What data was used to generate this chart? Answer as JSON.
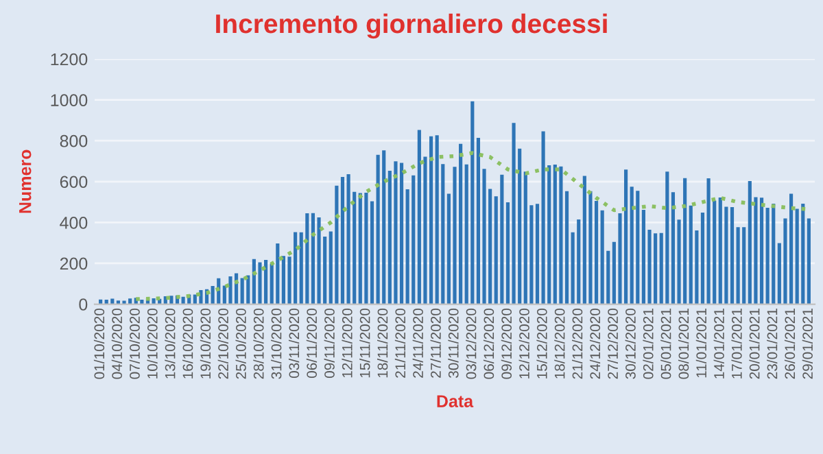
{
  "chart_data": {
    "type": "bar",
    "title": "Incremento giornaliero decessi",
    "xlabel": "Data",
    "ylabel": "Numero",
    "categories": [
      "01/10/2020",
      null,
      null,
      "04/10/2020",
      null,
      null,
      "07/10/2020",
      null,
      null,
      "10/10/2020",
      null,
      null,
      "13/10/2020",
      null,
      null,
      "16/10/2020",
      null,
      null,
      "19/10/2020",
      null,
      null,
      "22/10/2020",
      null,
      null,
      "25/10/2020",
      null,
      null,
      "28/10/2020",
      null,
      null,
      "31/10/2020",
      null,
      null,
      "03/11/2020",
      null,
      null,
      "06/11/2020",
      null,
      null,
      "09/11/2020",
      null,
      null,
      "12/11/2020",
      null,
      null,
      "15/11/2020",
      null,
      null,
      "18/11/2020",
      null,
      null,
      "21/11/2020",
      null,
      null,
      "24/11/2020",
      null,
      null,
      "27/11/2020",
      null,
      null,
      "30/11/2020",
      null,
      null,
      "03/12/2020",
      null,
      null,
      "06/12/2020",
      null,
      null,
      "09/12/2020",
      null,
      null,
      "12/12/2020",
      null,
      null,
      "15/12/2020",
      null,
      null,
      "18/12/2020",
      null,
      null,
      "21/12/2020",
      null,
      null,
      "24/12/2020",
      null,
      null,
      "27/12/2020",
      null,
      null,
      "30/12/2020",
      null,
      null,
      "02/01/2021",
      null,
      null,
      "05/01/2021",
      null,
      null,
      "08/01/2021",
      null,
      null,
      "11/01/2021",
      null,
      null,
      "14/01/2021",
      null,
      null,
      "17/01/2021",
      null,
      null,
      "20/01/2021",
      null,
      null,
      "23/01/2021",
      null,
      null,
      "26/01/2021",
      null,
      null,
      "29/01/2021"
    ],
    "series": [
      {
        "color": "#2e75b6",
        "values": [
          23,
          22,
          27,
          18,
          17,
          28,
          31,
          22,
          28,
          29,
          26,
          39,
          41,
          43,
          36,
          47,
          47,
          69,
          73,
          89,
          127,
          91,
          136,
          151,
          128,
          141,
          221,
          205,
          217,
          199,
          297,
          236,
          233,
          353,
          352,
          445,
          446,
          425,
          331,
          356,
          580,
          623,
          636,
          550,
          544,
          546,
          504,
          731,
          753,
          653,
          699,
          692,
          562,
          630,
          853,
          722,
          822,
          827,
          686,
          541,
          672,
          785,
          684,
          993,
          814,
          662,
          564,
          528,
          634,
          499,
          887,
          761,
          649,
          484,
          491,
          846,
          680,
          683,
          674,
          553,
          352,
          415,
          628,
          553,
          505,
          459,
          261,
          305,
          445,
          659,
          575,
          555,
          462,
          364,
          347,
          348,
          649,
          548,
          414,
          617,
          483,
          361,
          448,
          616,
          507,
          522,
          477,
          475,
          377,
          377,
          603,
          524,
          521,
          472,
          492,
          299,
          420,
          541,
          467,
          492,
          420
        ]
      },
      {
        "type": "line",
        "color": "#8cc063",
        "line_style": "dotted",
        "x": [
          "07/10/2020",
          "10/10/2020",
          "13/10/2020",
          "16/10/2020",
          "19/10/2020",
          "22/10/2020",
          "25/10/2020",
          "28/10/2020",
          "31/10/2020",
          "03/11/2020",
          "06/11/2020",
          "09/11/2020",
          "12/11/2020",
          "15/11/2020",
          "18/11/2020",
          "21/11/2020",
          "24/11/2020",
          "27/11/2020",
          "30/11/2020",
          "03/12/2020",
          "06/12/2020",
          "09/12/2020",
          "12/12/2020",
          "15/12/2020",
          "18/12/2020",
          "21/12/2020",
          "24/12/2020",
          "27/12/2020",
          "30/12/2020",
          "02/01/2021",
          "05/01/2021",
          "08/01/2021",
          "11/01/2021",
          "14/01/2021",
          "17/01/2021",
          "20/01/2021",
          "23/01/2021",
          "26/01/2021",
          "29/01/2021"
        ],
        "values": [
          25,
          27,
          32,
          40,
          55,
          85,
          120,
          165,
          215,
          265,
          340,
          400,
          480,
          550,
          600,
          640,
          690,
          720,
          725,
          740,
          720,
          660,
          640,
          660,
          660,
          590,
          520,
          460,
          470,
          480,
          470,
          480,
          500,
          520,
          500,
          490,
          480,
          470,
          465
        ]
      }
    ],
    "ylim": [
      0,
      1200
    ],
    "yticks": [
      0,
      200,
      400,
      600,
      800,
      1000,
      1200
    ],
    "grid": "y"
  }
}
